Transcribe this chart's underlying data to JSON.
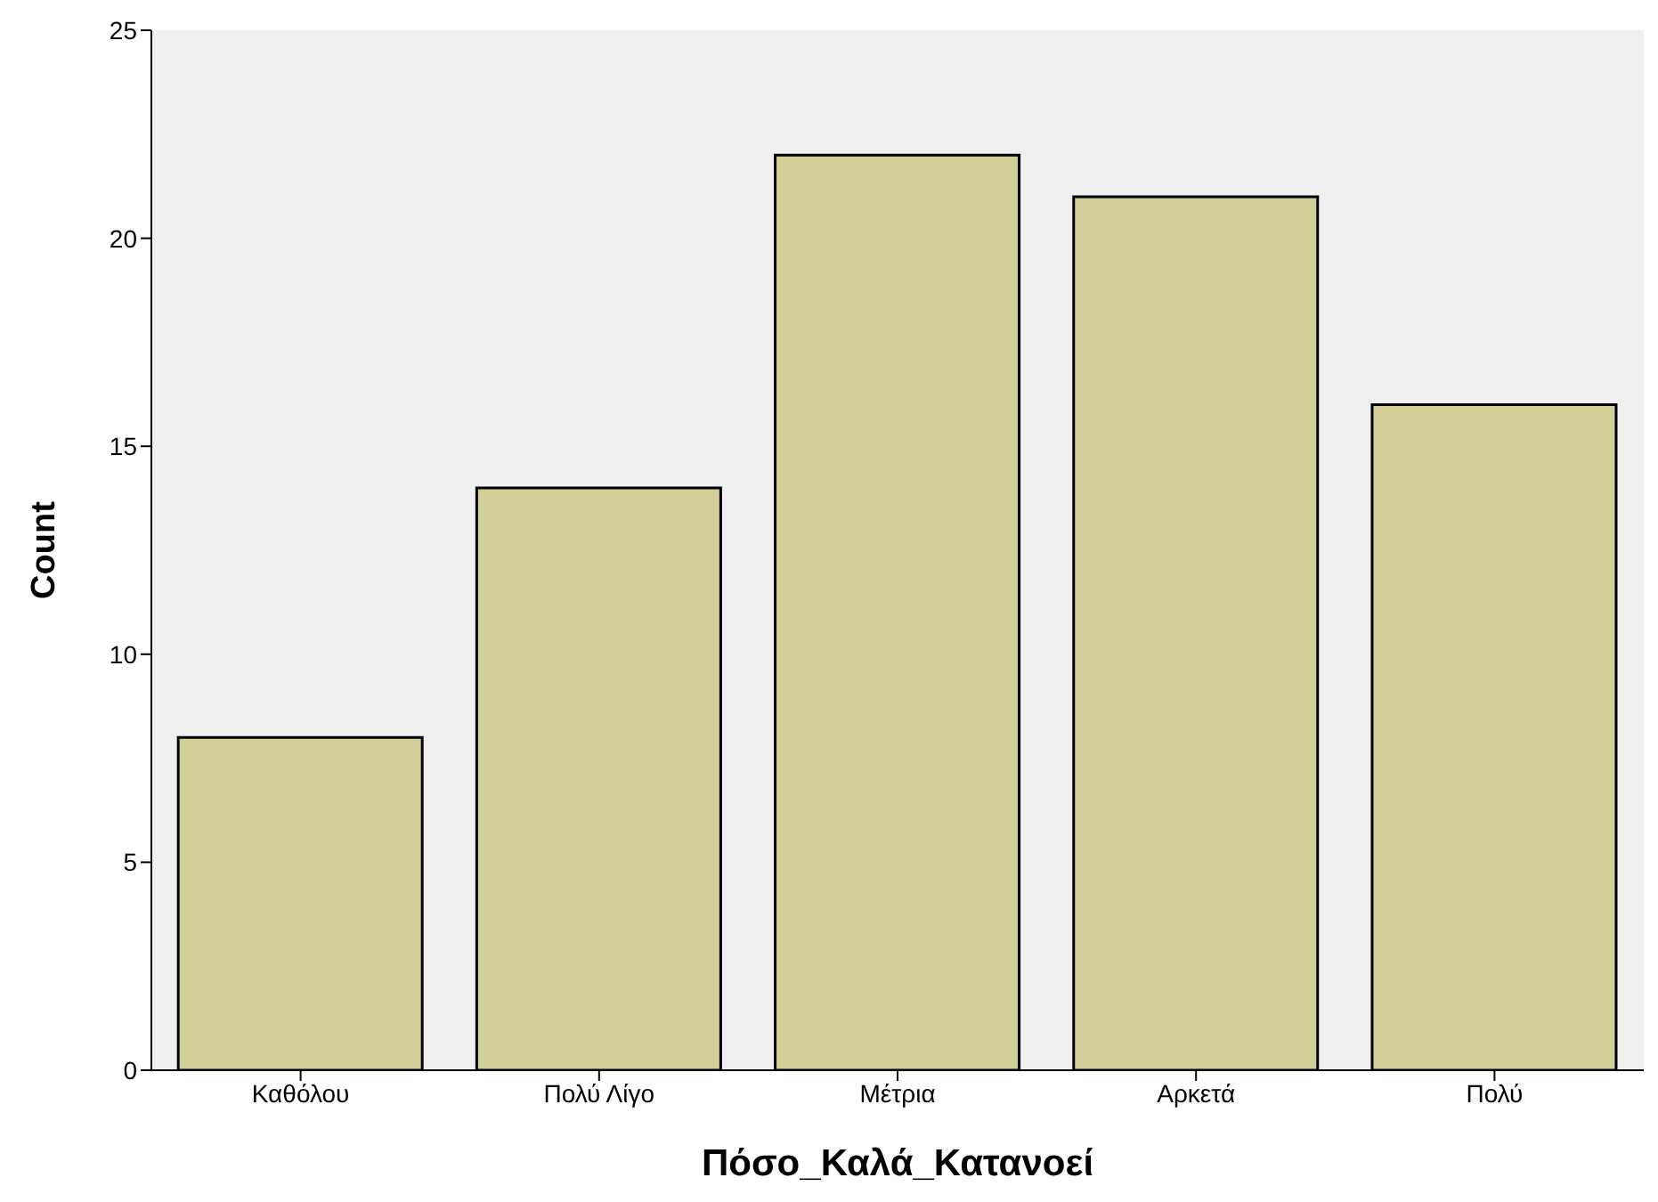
{
  "chart_data": {
    "type": "bar",
    "categories": [
      "Καθόλου",
      "Πολύ Λίγο",
      "Μέτρια",
      "Αρκετά",
      "Πολύ"
    ],
    "values": [
      8,
      14,
      22,
      21,
      16
    ],
    "color": "#d3ce97",
    "xlabel": "Πόσο_Καλά_Κατανοεί",
    "ylabel": "Count",
    "ylim": [
      0,
      25
    ],
    "yticks": [
      0,
      5,
      10,
      15,
      20,
      25
    ],
    "grid": false,
    "legend": false
  }
}
